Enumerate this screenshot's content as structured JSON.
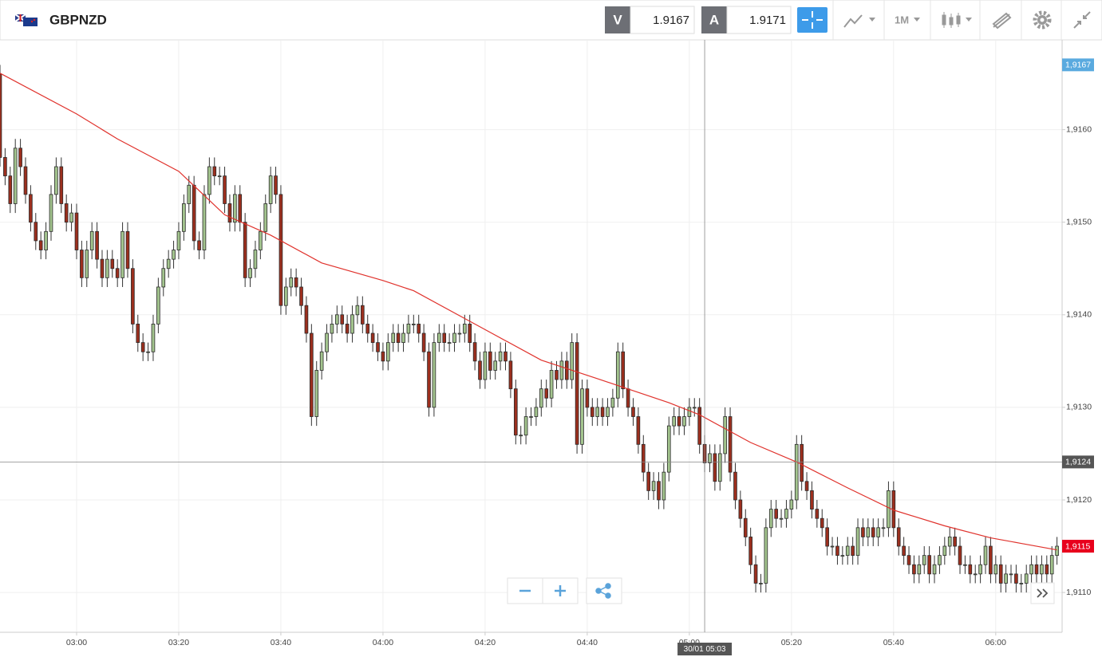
{
  "header": {
    "symbol": "GBPNZD",
    "sell_label": "V",
    "sell_price": "1.9167",
    "buy_label": "A",
    "buy_price": "1.9171",
    "timeframe": "1M"
  },
  "chart_data": {
    "type": "candlestick",
    "x": [
      165,
      166,
      167,
      168,
      169,
      170,
      171,
      172,
      173,
      174,
      175,
      176,
      177,
      178,
      179,
      180,
      181,
      182,
      183,
      184,
      185,
      186,
      187,
      188,
      189,
      190,
      191,
      192,
      193,
      194,
      195,
      196,
      197,
      198,
      199,
      200,
      201,
      202,
      203,
      204,
      205,
      206,
      207,
      208,
      209,
      210,
      211,
      212,
      213,
      214,
      215,
      216,
      217,
      218,
      219,
      220,
      221,
      222,
      223,
      224,
      225,
      226,
      227,
      228,
      229,
      230,
      231,
      232,
      233,
      234,
      235,
      236,
      237,
      238,
      239,
      240,
      241,
      242,
      243,
      244,
      245,
      246,
      247,
      248,
      249,
      250,
      251,
      252,
      253,
      254,
      255,
      256,
      257,
      258,
      259,
      260,
      261,
      262,
      263,
      264,
      265,
      266,
      267,
      268,
      269,
      270,
      271,
      272,
      273,
      274,
      275,
      276,
      277,
      278,
      279,
      280,
      281,
      282,
      283,
      284,
      285,
      286,
      287,
      288,
      289,
      290,
      291,
      292,
      293,
      294,
      295,
      296,
      297,
      298,
      299,
      300,
      301,
      302,
      303,
      304,
      305,
      306,
      307,
      308,
      309,
      310,
      311,
      312,
      313,
      314,
      315,
      316,
      317,
      318,
      319,
      320,
      321,
      322,
      323,
      324,
      325,
      326,
      327,
      328,
      329,
      330,
      331,
      332,
      333,
      334,
      335,
      336,
      337,
      338,
      339,
      340,
      341,
      342,
      343,
      344,
      345,
      346,
      347,
      348,
      349,
      350,
      351,
      352,
      353,
      354,
      355,
      356,
      357,
      358,
      359,
      360,
      361,
      362,
      363,
      364,
      365,
      366,
      367,
      368,
      369,
      370,
      371,
      372
    ],
    "open": [
      1.9166,
      1.9157,
      1.9155,
      1.9152,
      1.9158,
      1.9156,
      1.9153,
      1.915,
      1.9148,
      1.9147,
      1.9149,
      1.9153,
      1.9156,
      1.9152,
      1.915,
      1.9151,
      1.9147,
      1.9144,
      1.9147,
      1.9149,
      1.9146,
      1.9144,
      1.9146,
      1.9145,
      1.9144,
      1.9149,
      1.9145,
      1.9139,
      1.9137,
      1.9136,
      1.9136,
      1.9139,
      1.9143,
      1.9145,
      1.9146,
      1.9147,
      1.9149,
      1.9152,
      1.9154,
      1.9148,
      1.9147,
      1.9153,
      1.9156,
      1.9155,
      1.9155,
      1.9152,
      1.915,
      1.9153,
      1.915,
      1.9144,
      1.9145,
      1.9147,
      1.9149,
      1.9152,
      1.9155,
      1.9153,
      1.9141,
      1.9143,
      1.9144,
      1.9143,
      1.9141,
      1.9138,
      1.9129,
      1.9134,
      1.9136,
      1.9138,
      1.9139,
      1.914,
      1.9139,
      1.9138,
      1.914,
      1.9141,
      1.9139,
      1.9138,
      1.9137,
      1.9136,
      1.9135,
      1.9137,
      1.9138,
      1.9137,
      1.9138,
      1.9139,
      1.9139,
      1.9138,
      1.9136,
      1.913,
      1.9137,
      1.9138,
      1.9137,
      1.9137,
      1.9138,
      1.9138,
      1.9139,
      1.9137,
      1.9135,
      1.9133,
      1.9136,
      1.9134,
      1.9135,
      1.9136,
      1.9135,
      1.9132,
      1.9127,
      1.9127,
      1.9129,
      1.9129,
      1.913,
      1.9132,
      1.9131,
      1.9134,
      1.9133,
      1.9135,
      1.9133,
      1.9137,
      1.9126,
      1.9132,
      1.913,
      1.9129,
      1.913,
      1.9129,
      1.913,
      1.9131,
      1.9136,
      1.9132,
      1.913,
      1.9129,
      1.9126,
      1.9123,
      1.9121,
      1.9122,
      1.912,
      1.9123,
      1.9128,
      1.9129,
      1.9128,
      1.9129,
      1.913,
      1.913,
      1.9126,
      1.9124,
      1.9125,
      1.9122,
      1.9125,
      1.9129,
      1.9123,
      1.912,
      1.9118,
      1.9116,
      1.9113,
      1.9111,
      1.9111,
      1.9117,
      1.9119,
      1.9118,
      1.9118,
      1.9119,
      1.912,
      1.9126,
      1.9122,
      1.9121,
      1.9119,
      1.9118,
      1.9117,
      1.9115,
      1.9115,
      1.9114,
      1.9114,
      1.9115,
      1.9114,
      1.9117,
      1.9116,
      1.9117,
      1.9116,
      1.9117,
      1.9117,
      1.9121,
      1.9117,
      1.9115,
      1.9114,
      1.9113,
      1.9112,
      1.9113,
      1.9114,
      1.9112,
      1.9113,
      1.9114,
      1.9115,
      1.9116,
      1.9115,
      1.9113,
      1.9113,
      1.9112,
      1.9112,
      1.9113,
      1.9115,
      1.9112,
      1.9113,
      1.9111,
      1.9112,
      1.9112,
      1.9111,
      1.9111,
      1.9112,
      1.9113,
      1.9112,
      1.9113,
      1.9112,
      1.9114
    ],
    "high": [
      1.9167,
      1.9158,
      1.9156,
      1.9159,
      1.9159,
      1.9157,
      1.9154,
      1.9151,
      1.9149,
      1.915,
      1.9154,
      1.9157,
      1.9157,
      1.9153,
      1.9152,
      1.9152,
      1.9148,
      1.9148,
      1.915,
      1.915,
      1.9147,
      1.9147,
      1.9147,
      1.9146,
      1.915,
      1.915,
      1.9146,
      1.914,
      1.9138,
      1.9137,
      1.914,
      1.9144,
      1.9146,
      1.9147,
      1.9148,
      1.915,
      1.9153,
      1.9155,
      1.9155,
      1.9149,
      1.9154,
      1.9157,
      1.9157,
      1.9156,
      1.9156,
      1.9153,
      1.9154,
      1.9154,
      1.9151,
      1.9146,
      1.9148,
      1.915,
      1.9153,
      1.9156,
      1.9156,
      1.9154,
      1.9144,
      1.9145,
      1.9145,
      1.9144,
      1.9142,
      1.9139,
      1.9135,
      1.9137,
      1.9139,
      1.914,
      1.9141,
      1.9141,
      1.914,
      1.9141,
      1.9142,
      1.9142,
      1.914,
      1.9139,
      1.9138,
      1.9137,
      1.9138,
      1.9139,
      1.9139,
      1.9139,
      1.914,
      1.914,
      1.914,
      1.9139,
      1.9137,
      1.9138,
      1.9139,
      1.9139,
      1.9138,
      1.9139,
      1.9139,
      1.914,
      1.914,
      1.9138,
      1.9136,
      1.9137,
      1.9137,
      1.9136,
      1.9137,
      1.9137,
      1.9136,
      1.9133,
      1.9128,
      1.913,
      1.913,
      1.9131,
      1.9133,
      1.9133,
      1.9135,
      1.9135,
      1.9136,
      1.9136,
      1.9138,
      1.9138,
      1.9133,
      1.9133,
      1.9131,
      1.9131,
      1.9131,
      1.9131,
      1.9132,
      1.9137,
      1.9137,
      1.9133,
      1.9131,
      1.913,
      1.9127,
      1.9124,
      1.9123,
      1.9123,
      1.9124,
      1.9129,
      1.913,
      1.913,
      1.913,
      1.9131,
      1.9131,
      1.9131,
      1.9127,
      1.9126,
      1.9126,
      1.9126,
      1.913,
      1.913,
      1.9124,
      1.9121,
      1.9119,
      1.9117,
      1.9114,
      1.9112,
      1.9118,
      1.912,
      1.912,
      1.9119,
      1.912,
      1.9121,
      1.9127,
      1.9127,
      1.9123,
      1.9122,
      1.912,
      1.9119,
      1.9118,
      1.9116,
      1.9116,
      1.9115,
      1.9116,
      1.9116,
      1.9118,
      1.9118,
      1.9118,
      1.9118,
      1.9118,
      1.9118,
      1.9122,
      1.9122,
      1.9118,
      1.9116,
      1.9115,
      1.9114,
      1.9114,
      1.9115,
      1.9115,
      1.9114,
      1.9115,
      1.9116,
      1.9117,
      1.9117,
      1.9116,
      1.9114,
      1.9114,
      1.9113,
      1.9114,
      1.9116,
      1.9116,
      1.9114,
      1.9114,
      1.9113,
      1.9113,
      1.9113,
      1.9112,
      1.9113,
      1.9114,
      1.9114,
      1.9114,
      1.9114,
      1.9115,
      1.9116
    ],
    "low": [
      1.9156,
      1.9154,
      1.9151,
      1.9151,
      1.9155,
      1.9152,
      1.9149,
      1.9147,
      1.9146,
      1.9146,
      1.9148,
      1.9152,
      1.9151,
      1.9149,
      1.9149,
      1.9146,
      1.9143,
      1.9143,
      1.9146,
      1.9145,
      1.9143,
      1.9143,
      1.9144,
      1.9143,
      1.9143,
      1.9144,
      1.9138,
      1.9136,
      1.9135,
      1.9135,
      1.9135,
      1.9138,
      1.9142,
      1.9144,
      1.9145,
      1.9146,
      1.9148,
      1.9151,
      1.9147,
      1.9146,
      1.9146,
      1.9152,
      1.9154,
      1.9154,
      1.9151,
      1.9149,
      1.9149,
      1.9149,
      1.9143,
      1.9143,
      1.9144,
      1.9146,
      1.9148,
      1.9151,
      1.9152,
      1.914,
      1.914,
      1.9142,
      1.9142,
      1.914,
      1.9137,
      1.9128,
      1.9128,
      1.9133,
      1.9135,
      1.9137,
      1.9138,
      1.9138,
      1.9137,
      1.9137,
      1.9139,
      1.9138,
      1.9137,
      1.9136,
      1.9135,
      1.9134,
      1.9134,
      1.9136,
      1.9136,
      1.9136,
      1.9137,
      1.9138,
      1.9137,
      1.9135,
      1.9129,
      1.9129,
      1.9136,
      1.9136,
      1.9136,
      1.9136,
      1.9137,
      1.9137,
      1.9136,
      1.9134,
      1.9132,
      1.9132,
      1.9133,
      1.9133,
      1.9134,
      1.9134,
      1.9131,
      1.9126,
      1.9126,
      1.9126,
      1.9128,
      1.9128,
      1.9129,
      1.913,
      1.913,
      1.9132,
      1.9132,
      1.9132,
      1.9132,
      1.9125,
      1.9125,
      1.9129,
      1.9128,
      1.9128,
      1.9128,
      1.9128,
      1.9129,
      1.913,
      1.9131,
      1.9129,
      1.9128,
      1.9125,
      1.9122,
      1.912,
      1.912,
      1.9119,
      1.9119,
      1.9122,
      1.9127,
      1.9127,
      1.9127,
      1.9128,
      1.9129,
      1.9125,
      1.9123,
      1.9123,
      1.9121,
      1.9121,
      1.9124,
      1.9122,
      1.9119,
      1.9117,
      1.9115,
      1.9112,
      1.911,
      1.911,
      1.911,
      1.9116,
      1.9117,
      1.9117,
      1.9117,
      1.9118,
      1.9119,
      1.9121,
      1.912,
      1.9118,
      1.9117,
      1.9116,
      1.9114,
      1.9114,
      1.9113,
      1.9113,
      1.9113,
      1.9113,
      1.9113,
      1.9115,
      1.9115,
      1.9115,
      1.9115,
      1.9116,
      1.9116,
      1.9116,
      1.9114,
      1.9113,
      1.9112,
      1.9111,
      1.9111,
      1.9112,
      1.9111,
      1.9111,
      1.9112,
      1.9113,
      1.9114,
      1.9114,
      1.9112,
      1.9112,
      1.9111,
      1.9111,
      1.9111,
      1.9112,
      1.9111,
      1.9111,
      1.911,
      1.911,
      1.9111,
      1.911,
      1.911,
      1.911,
      1.9111,
      1.9111,
      1.9111,
      1.9111,
      1.9111,
      1.9113
    ],
    "close": [
      1.9157,
      1.9155,
      1.9152,
      1.9158,
      1.9156,
      1.9153,
      1.915,
      1.9148,
      1.9147,
      1.9149,
      1.9153,
      1.9156,
      1.9152,
      1.915,
      1.9151,
      1.9147,
      1.9144,
      1.9147,
      1.9149,
      1.9146,
      1.9144,
      1.9146,
      1.9145,
      1.9144,
      1.9149,
      1.9145,
      1.9139,
      1.9137,
      1.9136,
      1.9136,
      1.9139,
      1.9143,
      1.9145,
      1.9146,
      1.9147,
      1.9149,
      1.9152,
      1.9154,
      1.9148,
      1.9147,
      1.9153,
      1.9156,
      1.9155,
      1.9155,
      1.9152,
      1.915,
      1.9153,
      1.915,
      1.9144,
      1.9145,
      1.9147,
      1.9149,
      1.9152,
      1.9155,
      1.9153,
      1.9141,
      1.9143,
      1.9144,
      1.9143,
      1.9141,
      1.9138,
      1.9129,
      1.9134,
      1.9136,
      1.9138,
      1.9139,
      1.914,
      1.9139,
      1.9138,
      1.914,
      1.9141,
      1.9139,
      1.9138,
      1.9137,
      1.9136,
      1.9135,
      1.9137,
      1.9138,
      1.9137,
      1.9138,
      1.9139,
      1.9139,
      1.9138,
      1.9136,
      1.913,
      1.9137,
      1.9138,
      1.9137,
      1.9137,
      1.9138,
      1.9138,
      1.9139,
      1.9137,
      1.9135,
      1.9133,
      1.9136,
      1.9134,
      1.9135,
      1.9136,
      1.9135,
      1.9132,
      1.9127,
      1.9127,
      1.9129,
      1.9129,
      1.913,
      1.9132,
      1.9131,
      1.9134,
      1.9133,
      1.9135,
      1.9133,
      1.9137,
      1.9126,
      1.9132,
      1.913,
      1.9129,
      1.913,
      1.9129,
      1.913,
      1.9131,
      1.9136,
      1.9132,
      1.913,
      1.9129,
      1.9126,
      1.9123,
      1.9121,
      1.9122,
      1.912,
      1.9123,
      1.9128,
      1.9129,
      1.9128,
      1.9129,
      1.913,
      1.913,
      1.9126,
      1.9124,
      1.9125,
      1.9122,
      1.9125,
      1.9129,
      1.9123,
      1.912,
      1.9118,
      1.9116,
      1.9113,
      1.9111,
      1.9111,
      1.9117,
      1.9119,
      1.9118,
      1.9118,
      1.9119,
      1.912,
      1.9126,
      1.9122,
      1.9121,
      1.9119,
      1.9118,
      1.9117,
      1.9115,
      1.9115,
      1.9114,
      1.9114,
      1.9115,
      1.9114,
      1.9117,
      1.9116,
      1.9117,
      1.9116,
      1.9117,
      1.9117,
      1.9121,
      1.9117,
      1.9115,
      1.9114,
      1.9113,
      1.9112,
      1.9113,
      1.9114,
      1.9112,
      1.9113,
      1.9114,
      1.9115,
      1.9116,
      1.9115,
      1.9113,
      1.9113,
      1.9112,
      1.9112,
      1.9113,
      1.9115,
      1.9112,
      1.9113,
      1.9111,
      1.9112,
      1.9112,
      1.9111,
      1.9111,
      1.9112,
      1.9113,
      1.9112,
      1.9113,
      1.9112,
      1.9114,
      1.9115
    ],
    "up_color": "#a3c48e",
    "down_color": "#9c2f1e",
    "moving_average": {
      "color": "#e0322c",
      "x": [
        165,
        180,
        188,
        200,
        209,
        218,
        228,
        240,
        246,
        259,
        271,
        282,
        296,
        302,
        312,
        321,
        331,
        340,
        350,
        359,
        365,
        372
      ],
      "values": [
        1.91661,
        1.91617,
        1.9159,
        1.91555,
        1.91508,
        1.91486,
        1.91456,
        1.91437,
        1.91426,
        1.91387,
        1.91351,
        1.91331,
        1.91305,
        1.91292,
        1.91262,
        1.91241,
        1.91213,
        1.91189,
        1.91172,
        1.91159,
        1.91153,
        1.91146
      ]
    },
    "xlim": [
      165,
      373
    ],
    "xticks": [
      {
        "value": 180,
        "label": "03:00"
      },
      {
        "value": 200,
        "label": "03:20"
      },
      {
        "value": 220,
        "label": "03:40"
      },
      {
        "value": 240,
        "label": "04:00"
      },
      {
        "value": 260,
        "label": "04:20"
      },
      {
        "value": 280,
        "label": "04:40"
      },
      {
        "value": 300,
        "label": "05:00"
      },
      {
        "value": 320,
        "label": "05:20"
      },
      {
        "value": 340,
        "label": "05:40"
      },
      {
        "value": 360,
        "label": "06:00"
      }
    ],
    "ylim": [
      1.91057,
      1.91697
    ],
    "yticks": [
      {
        "value": 1.911,
        "label": "1,9110"
      },
      {
        "value": 1.912,
        "label": "1,9120"
      },
      {
        "value": 1.913,
        "label": "1,9130"
      },
      {
        "value": 1.914,
        "label": "1,9140"
      },
      {
        "value": 1.915,
        "label": "1,9150"
      },
      {
        "value": 1.916,
        "label": "1,9160"
      }
    ],
    "grid": true,
    "crosshair": {
      "x": {
        "value": 303,
        "label": "30/01 05:03"
      },
      "y": {
        "value": 1.91241,
        "label": "1,9124"
      }
    },
    "price_tags": [
      {
        "value": 1.9167,
        "label": "1,9167",
        "color": "#5aaadf"
      },
      {
        "value": 1.9115,
        "label": "1,9115",
        "color": "#e8001c"
      }
    ]
  }
}
